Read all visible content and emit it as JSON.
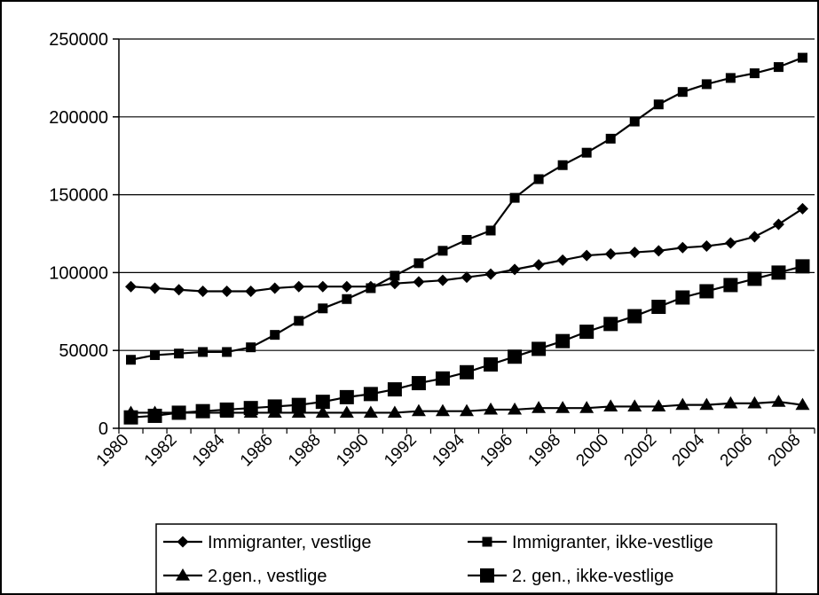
{
  "chart_data": {
    "type": "line",
    "title": "",
    "xlabel": "",
    "ylabel": "",
    "ylim": [
      0,
      250000
    ],
    "yticks": [
      "0",
      "50000",
      "100000",
      "150000",
      "200000",
      "250000"
    ],
    "xticks": [
      "1980",
      "1982",
      "1984",
      "1986",
      "1988",
      "1990",
      "1992",
      "1994",
      "1996",
      "1998",
      "2000",
      "2002",
      "2004",
      "2006",
      "2008"
    ],
    "x": [
      1980,
      1981,
      1982,
      1983,
      1984,
      1985,
      1986,
      1987,
      1988,
      1989,
      1990,
      1991,
      1992,
      1993,
      1994,
      1995,
      1996,
      1997,
      1998,
      1999,
      2000,
      2001,
      2002,
      2003,
      2004,
      2005,
      2006,
      2007,
      2008
    ],
    "grid": "horizontal",
    "legend_position": "bottom",
    "series": [
      {
        "name": "Immigranter, vestlige",
        "marker": "diamond",
        "values": [
          91000,
          90000,
          89000,
          88000,
          88000,
          88000,
          90000,
          91000,
          91000,
          91000,
          91000,
          93000,
          94000,
          95000,
          97000,
          99000,
          102000,
          105000,
          108000,
          111000,
          112000,
          113000,
          114000,
          116000,
          117000,
          119000,
          123000,
          131000,
          141000
        ]
      },
      {
        "name": "Immigranter, ikke-vestlige",
        "marker": "square",
        "values": [
          44000,
          47000,
          48000,
          49000,
          49000,
          52000,
          60000,
          69000,
          77000,
          83000,
          90000,
          98000,
          106000,
          114000,
          121000,
          127000,
          148000,
          160000,
          169000,
          177000,
          186000,
          197000,
          208000,
          216000,
          221000,
          225000,
          228000,
          232000,
          238000
        ]
      },
      {
        "name": "2.gen., vestlige",
        "marker": "triangle",
        "values": [
          10000,
          10000,
          10000,
          10000,
          10000,
          10000,
          10000,
          10000,
          10000,
          10000,
          10000,
          10000,
          11000,
          11000,
          11000,
          12000,
          12000,
          13000,
          13000,
          13000,
          14000,
          14000,
          14000,
          15000,
          15000,
          16000,
          16000,
          17000,
          15000
        ]
      },
      {
        "name": "2. gen., ikke-vestlige",
        "marker": "big-square",
        "values": [
          7000,
          8000,
          10000,
          11000,
          12000,
          13000,
          14000,
          15000,
          17000,
          20000,
          22000,
          25000,
          29000,
          32000,
          36000,
          41000,
          46000,
          51000,
          56000,
          62000,
          67000,
          72000,
          78000,
          84000,
          88000,
          92000,
          96000,
          100000,
          104000
        ]
      }
    ]
  }
}
